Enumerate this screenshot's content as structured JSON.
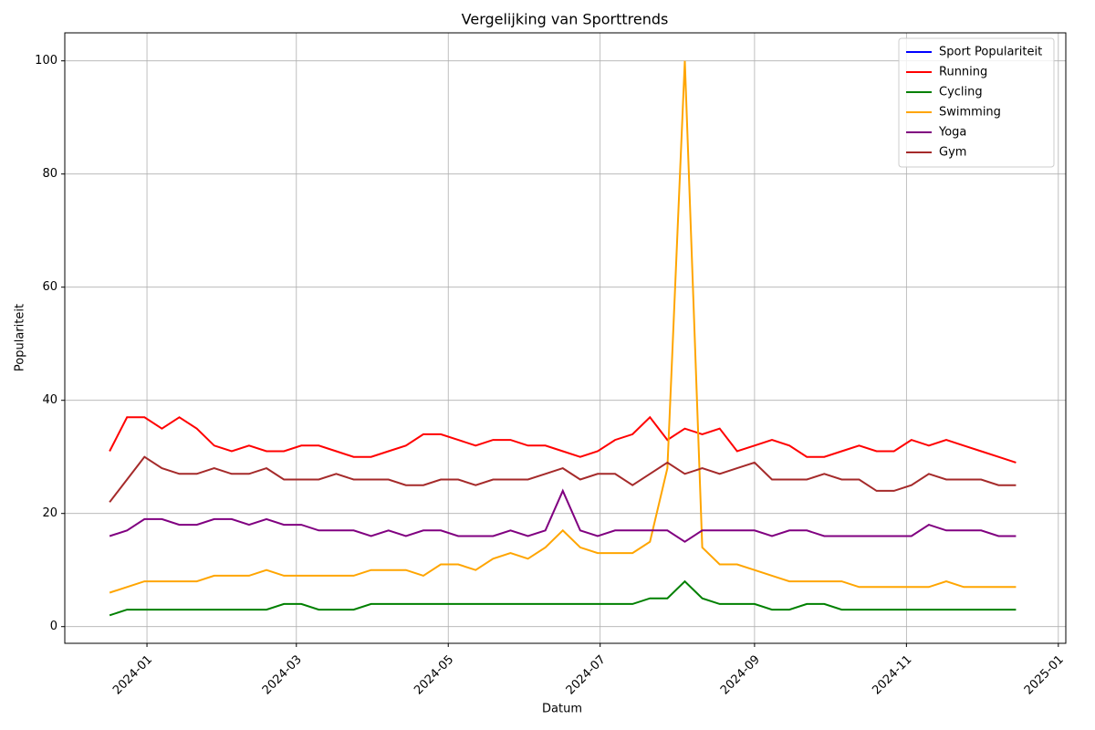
{
  "chart_data": {
    "type": "line",
    "title": "Vergelijking van Sporttrends",
    "x_label": "Datum",
    "y_label": "Populariteit",
    "x": [
      "2023-12-17",
      "2023-12-24",
      "2023-12-31",
      "2024-01-07",
      "2024-01-14",
      "2024-01-21",
      "2024-01-28",
      "2024-02-04",
      "2024-02-11",
      "2024-02-18",
      "2024-02-25",
      "2024-03-03",
      "2024-03-10",
      "2024-03-17",
      "2024-03-24",
      "2024-03-31",
      "2024-04-07",
      "2024-04-14",
      "2024-04-21",
      "2024-04-28",
      "2024-05-05",
      "2024-05-12",
      "2024-05-19",
      "2024-05-26",
      "2024-06-02",
      "2024-06-09",
      "2024-06-16",
      "2024-06-23",
      "2024-06-30",
      "2024-07-07",
      "2024-07-14",
      "2024-07-21",
      "2024-07-28",
      "2024-08-04",
      "2024-08-11",
      "2024-08-18",
      "2024-08-25",
      "2024-09-01",
      "2024-09-08",
      "2024-09-15",
      "2024-09-22",
      "2024-09-29",
      "2024-10-06",
      "2024-10-13",
      "2024-10-20",
      "2024-10-27",
      "2024-11-03",
      "2024-11-10",
      "2024-11-17",
      "2024-11-24",
      "2024-12-01",
      "2024-12-08",
      "2024-12-15"
    ],
    "series": [
      {
        "name": "Sport Populariteit",
        "color": "#0000ff",
        "values": [
          null,
          null,
          null,
          null,
          null,
          null,
          null,
          null,
          null,
          null,
          null,
          null,
          null,
          null,
          null,
          null,
          null,
          null,
          null,
          null,
          null,
          null,
          null,
          null,
          null,
          null,
          null,
          null,
          null,
          null,
          null,
          null,
          null,
          null,
          null,
          null,
          null,
          null,
          null,
          null,
          null,
          null,
          null,
          null,
          null,
          null,
          null,
          null,
          null,
          null,
          null,
          null,
          null
        ]
      },
      {
        "name": "Running",
        "color": "#ff0000",
        "values": [
          31,
          37,
          37,
          35,
          37,
          35,
          32,
          31,
          32,
          31,
          31,
          32,
          32,
          31,
          30,
          30,
          31,
          32,
          34,
          34,
          33,
          32,
          33,
          33,
          32,
          32,
          31,
          30,
          31,
          33,
          34,
          37,
          33,
          35,
          34,
          35,
          31,
          32,
          33,
          32,
          30,
          30,
          31,
          32,
          31,
          31,
          33,
          32,
          33,
          32,
          31,
          30,
          29
        ]
      },
      {
        "name": "Cycling",
        "color": "#008000",
        "values": [
          2,
          3,
          3,
          3,
          3,
          3,
          3,
          3,
          3,
          3,
          4,
          4,
          3,
          3,
          3,
          4,
          4,
          4,
          4,
          4,
          4,
          4,
          4,
          4,
          4,
          4,
          4,
          4,
          4,
          4,
          4,
          5,
          5,
          8,
          5,
          4,
          4,
          4,
          3,
          3,
          4,
          4,
          3,
          3,
          3,
          3,
          3,
          3,
          3,
          3,
          3,
          3,
          3
        ]
      },
      {
        "name": "Swimming",
        "color": "#ffa500",
        "values": [
          6,
          7,
          8,
          8,
          8,
          8,
          9,
          9,
          9,
          10,
          9,
          9,
          9,
          9,
          9,
          10,
          10,
          10,
          9,
          11,
          11,
          10,
          12,
          13,
          12,
          14,
          17,
          14,
          13,
          13,
          13,
          15,
          28,
          100,
          14,
          11,
          11,
          10,
          9,
          8,
          8,
          8,
          8,
          7,
          7,
          7,
          7,
          7,
          8,
          7,
          7,
          7,
          7
        ]
      },
      {
        "name": "Yoga",
        "color": "#800080",
        "values": [
          16,
          17,
          19,
          19,
          18,
          18,
          19,
          19,
          18,
          19,
          18,
          18,
          17,
          17,
          17,
          16,
          17,
          16,
          17,
          17,
          16,
          16,
          16,
          17,
          16,
          17,
          24,
          17,
          16,
          17,
          17,
          17,
          17,
          15,
          17,
          17,
          17,
          17,
          16,
          17,
          17,
          16,
          16,
          16,
          16,
          16,
          16,
          18,
          17,
          17,
          17,
          16,
          16
        ]
      },
      {
        "name": "Gym",
        "color": "#a52a2a",
        "values": [
          22,
          26,
          30,
          28,
          27,
          27,
          28,
          27,
          27,
          28,
          26,
          26,
          26,
          27,
          26,
          26,
          26,
          25,
          25,
          26,
          26,
          25,
          26,
          26,
          26,
          27,
          28,
          26,
          27,
          27,
          25,
          27,
          29,
          27,
          28,
          27,
          28,
          29,
          26,
          26,
          26,
          27,
          26,
          26,
          24,
          24,
          25,
          27,
          26,
          26,
          26,
          25,
          25
        ]
      }
    ],
    "xlim": [
      "2023-11-29",
      "2025-01-04"
    ],
    "xticks": [
      {
        "value": "2024-01-01",
        "label": "2024-01"
      },
      {
        "value": "2024-03-01",
        "label": "2024-03"
      },
      {
        "value": "2024-05-01",
        "label": "2024-05"
      },
      {
        "value": "2024-07-01",
        "label": "2024-07"
      },
      {
        "value": "2024-09-01",
        "label": "2024-09"
      },
      {
        "value": "2024-11-01",
        "label": "2024-11"
      },
      {
        "value": "2025-01-01",
        "label": "2025-01"
      }
    ],
    "ylim": [
      -2.95,
      104.95
    ],
    "yticks": [
      0,
      20,
      40,
      60,
      80,
      100
    ],
    "grid": true,
    "legend": "upper right"
  }
}
